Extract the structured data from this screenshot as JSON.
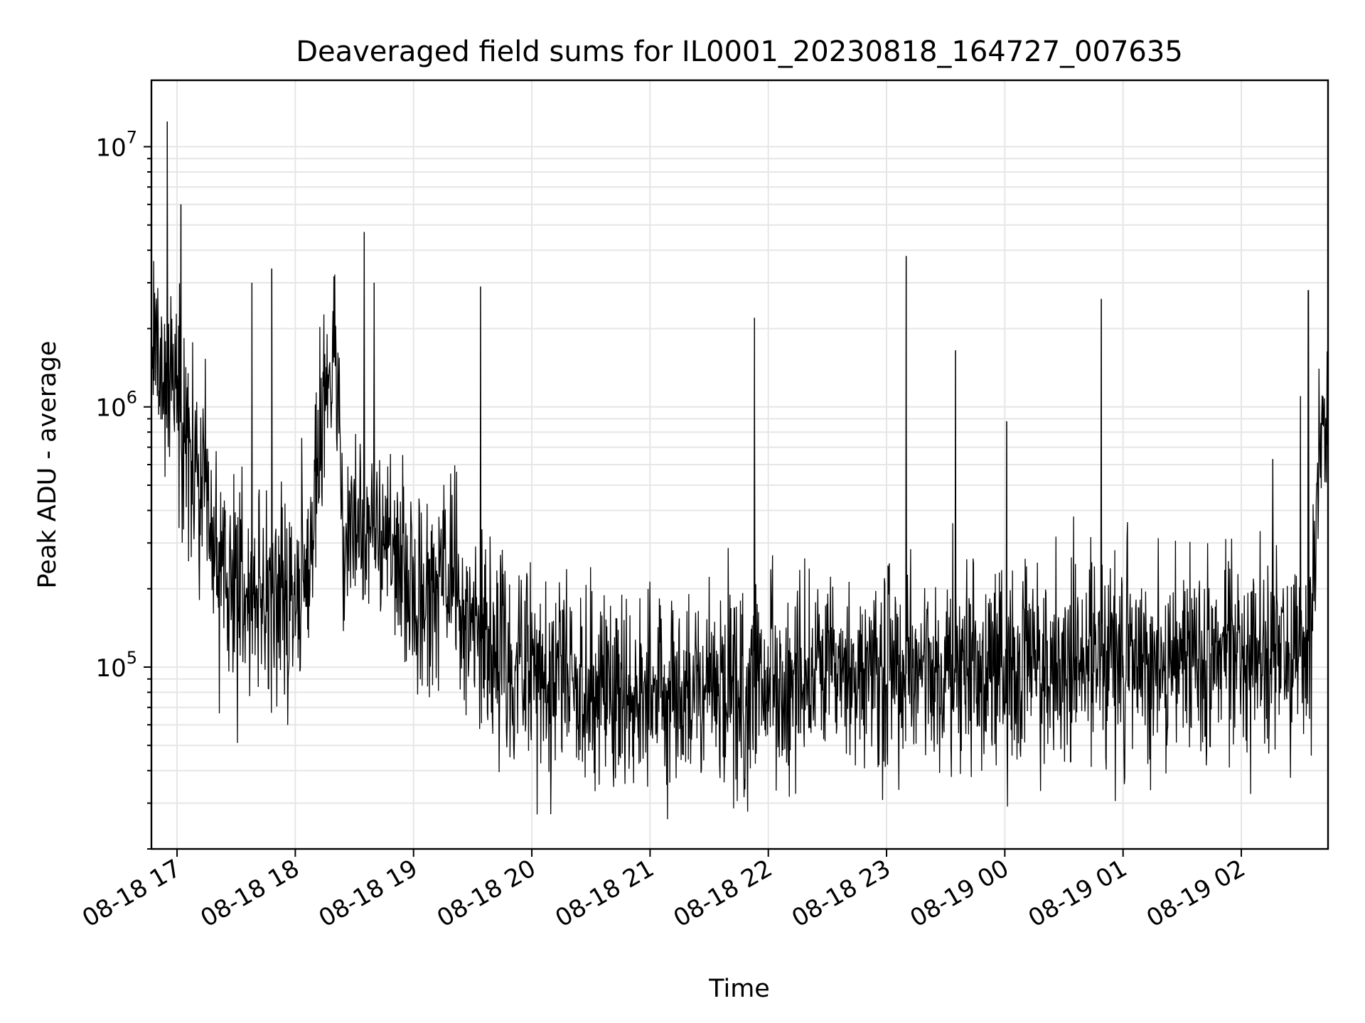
{
  "chart_data": {
    "type": "line",
    "title": "Deaveraged field sums for IL0001_20230818_164727_007635",
    "xlabel": "Time",
    "ylabel": "Peak ADU - average",
    "y_scale": "log",
    "ylim": [
      20000,
      18000000
    ],
    "xlim": [
      "2023-08-18 16:47",
      "2023-08-19 02:44"
    ],
    "grid": true,
    "x_ticks": [
      {
        "t": "2023-08-18 17:00",
        "label": "08-18 17"
      },
      {
        "t": "2023-08-18 18:00",
        "label": "08-18 18"
      },
      {
        "t": "2023-08-18 19:00",
        "label": "08-18 19"
      },
      {
        "t": "2023-08-18 20:00",
        "label": "08-18 20"
      },
      {
        "t": "2023-08-18 21:00",
        "label": "08-18 21"
      },
      {
        "t": "2023-08-18 22:00",
        "label": "08-18 22"
      },
      {
        "t": "2023-08-18 23:00",
        "label": "08-18 23"
      },
      {
        "t": "2023-08-19 00:00",
        "label": "08-19 00"
      },
      {
        "t": "2023-08-19 01:00",
        "label": "08-19 01"
      },
      {
        "t": "2023-08-19 02:00",
        "label": "08-19 02"
      }
    ],
    "y_ticks": [
      {
        "value": 100000,
        "base": "10",
        "exp": "5"
      },
      {
        "value": 1000000,
        "base": "10",
        "exp": "6"
      },
      {
        "value": 10000000,
        "base": "10",
        "exp": "7"
      }
    ],
    "series": [
      {
        "color": "#000000",
        "x": [
          "2023-08-18 16:47",
          "2023-08-18 16:50",
          "2023-08-18 16:53",
          "2023-08-18 16:56",
          "2023-08-18 16:59",
          "2023-08-18 17:02",
          "2023-08-18 17:05",
          "2023-08-18 17:08",
          "2023-08-18 17:12",
          "2023-08-18 17:16",
          "2023-08-18 17:20",
          "2023-08-18 17:25",
          "2023-08-18 17:30",
          "2023-08-18 17:36",
          "2023-08-18 17:42",
          "2023-08-18 17:48",
          "2023-08-18 17:54",
          "2023-08-18 18:00",
          "2023-08-18 18:05",
          "2023-08-18 18:10",
          "2023-08-18 18:13",
          "2023-08-18 18:16",
          "2023-08-18 18:19",
          "2023-08-18 18:22",
          "2023-08-18 18:25",
          "2023-08-18 18:30",
          "2023-08-18 18:36",
          "2023-08-18 18:42",
          "2023-08-18 18:48",
          "2023-08-18 18:54",
          "2023-08-18 19:00",
          "2023-08-18 19:06",
          "2023-08-18 19:12",
          "2023-08-18 19:18",
          "2023-08-18 19:24",
          "2023-08-18 19:30",
          "2023-08-18 19:36",
          "2023-08-18 19:45",
          "2023-08-18 20:00",
          "2023-08-18 20:15",
          "2023-08-18 20:30",
          "2023-08-18 20:45",
          "2023-08-18 21:00",
          "2023-08-18 21:15",
          "2023-08-18 21:30",
          "2023-08-18 21:45",
          "2023-08-18 22:00",
          "2023-08-18 22:15",
          "2023-08-18 22:30",
          "2023-08-18 22:45",
          "2023-08-18 23:00",
          "2023-08-18 23:15",
          "2023-08-18 23:30",
          "2023-08-18 23:45",
          "2023-08-19 00:00",
          "2023-08-19 00:15",
          "2023-08-19 00:30",
          "2023-08-19 00:45",
          "2023-08-19 01:00",
          "2023-08-19 01:15",
          "2023-08-19 01:30",
          "2023-08-19 01:45",
          "2023-08-19 02:00",
          "2023-08-19 02:15",
          "2023-08-19 02:30",
          "2023-08-19 02:35",
          "2023-08-19 02:40",
          "2023-08-19 02:44"
        ],
        "values": [
          1600000,
          1400000,
          1500000,
          1300000,
          1200000,
          1000000,
          800000,
          600000,
          450000,
          320000,
          270000,
          230000,
          210000,
          200000,
          190000,
          185000,
          180000,
          185000,
          200000,
          400000,
          900000,
          1300000,
          1400000,
          1200000,
          280000,
          350000,
          380000,
          330000,
          280000,
          230000,
          190000,
          170000,
          200000,
          240000,
          170000,
          150000,
          115000,
          105000,
          100000,
          95000,
          90000,
          85000,
          80000,
          80000,
          80000,
          82000,
          85000,
          85000,
          88000,
          90000,
          92000,
          95000,
          95000,
          95000,
          100000,
          105000,
          105000,
          110000,
          110000,
          108000,
          108000,
          110000,
          112000,
          115000,
          110000,
          130000,
          600000,
          1200000
        ],
        "spikes": [
          {
            "t": "2023-08-18 16:55",
            "value": 12500000
          },
          {
            "t": "2023-08-18 17:02",
            "value": 6000000
          },
          {
            "t": "2023-08-18 17:38",
            "value": 3000000
          },
          {
            "t": "2023-08-18 17:48",
            "value": 3400000
          },
          {
            "t": "2023-08-18 18:35",
            "value": 4700000
          },
          {
            "t": "2023-08-18 18:40",
            "value": 3000000
          },
          {
            "t": "2023-08-18 19:34",
            "value": 2900000
          },
          {
            "t": "2023-08-18 21:53",
            "value": 2200000
          },
          {
            "t": "2023-08-18 23:10",
            "value": 3800000
          },
          {
            "t": "2023-08-18 23:35",
            "value": 1650000
          },
          {
            "t": "2023-08-19 00:01",
            "value": 880000
          },
          {
            "t": "2023-08-19 00:49",
            "value": 2600000
          },
          {
            "t": "2023-08-19 02:16",
            "value": 630000
          },
          {
            "t": "2023-08-19 02:30",
            "value": 1100000
          },
          {
            "t": "2023-08-19 02:34",
            "value": 2800000
          }
        ]
      }
    ]
  }
}
